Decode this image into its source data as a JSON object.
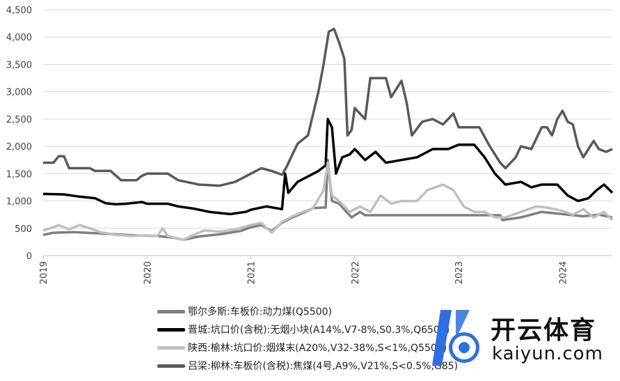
{
  "chart_data": {
    "type": "line",
    "ylim": [
      0,
      4500
    ],
    "yticks": [
      "0",
      "500",
      "1,000",
      "1,500",
      "2,000",
      "2,500",
      "3,000",
      "3,500",
      "4,000",
      "4,500"
    ],
    "ytick_values": [
      0,
      500,
      1000,
      1500,
      2000,
      2500,
      3000,
      3500,
      4000,
      4500
    ],
    "xlim": [
      2019.0,
      2024.48
    ],
    "xticks": [
      "2019",
      "2020",
      "2021",
      "2022",
      "2023",
      "2024"
    ],
    "xtick_values": [
      2019,
      2020,
      2021,
      2022,
      2023,
      2024
    ],
    "grid": "horizontal",
    "legend_position": "bottom",
    "series": [
      {
        "name": "鄂尔多斯:车板价:动力煤(Q5500)",
        "color": "#7f7f7f",
        "points": [
          [
            2019.0,
            380
          ],
          [
            2019.1,
            420
          ],
          [
            2019.3,
            430
          ],
          [
            2019.5,
            410
          ],
          [
            2019.7,
            390
          ],
          [
            2019.9,
            370
          ],
          [
            2020.1,
            360
          ],
          [
            2020.25,
            330
          ],
          [
            2020.35,
            290
          ],
          [
            2020.5,
            350
          ],
          [
            2020.7,
            390
          ],
          [
            2020.9,
            450
          ],
          [
            2021.0,
            520
          ],
          [
            2021.1,
            560
          ],
          [
            2021.2,
            450
          ],
          [
            2021.3,
            600
          ],
          [
            2021.4,
            700
          ],
          [
            2021.5,
            780
          ],
          [
            2021.6,
            870
          ],
          [
            2021.7,
            880
          ],
          [
            2021.72,
            880
          ],
          [
            2021.74,
            1750
          ],
          [
            2021.78,
            1000
          ],
          [
            2021.85,
            950
          ],
          [
            2021.92,
            800
          ],
          [
            2021.97,
            700
          ],
          [
            2022.05,
            800
          ],
          [
            2022.1,
            740
          ],
          [
            2022.3,
            740
          ],
          [
            2022.6,
            740
          ],
          [
            2022.8,
            740
          ],
          [
            2023.0,
            740
          ],
          [
            2023.2,
            740
          ],
          [
            2023.4,
            740
          ],
          [
            2023.42,
            650
          ],
          [
            2023.6,
            700
          ],
          [
            2023.8,
            800
          ],
          [
            2024.0,
            760
          ],
          [
            2024.2,
            720
          ],
          [
            2024.35,
            750
          ],
          [
            2024.48,
            700
          ]
        ]
      },
      {
        "name": "晋城:坑口价(含税):无烟小块(A14%,V7-8%,S0.3%,Q6500)",
        "color": "#000000",
        "points": [
          [
            2019.0,
            1130
          ],
          [
            2019.2,
            1120
          ],
          [
            2019.35,
            1080
          ],
          [
            2019.5,
            1050
          ],
          [
            2019.6,
            960
          ],
          [
            2019.7,
            940
          ],
          [
            2019.8,
            950
          ],
          [
            2019.95,
            980
          ],
          [
            2020.0,
            950
          ],
          [
            2020.2,
            950
          ],
          [
            2020.3,
            900
          ],
          [
            2020.45,
            860
          ],
          [
            2020.6,
            800
          ],
          [
            2020.8,
            760
          ],
          [
            2020.95,
            800
          ],
          [
            2021.0,
            840
          ],
          [
            2021.15,
            900
          ],
          [
            2021.3,
            850
          ],
          [
            2021.33,
            1500
          ],
          [
            2021.36,
            1150
          ],
          [
            2021.45,
            1350
          ],
          [
            2021.55,
            1450
          ],
          [
            2021.65,
            1550
          ],
          [
            2021.72,
            1650
          ],
          [
            2021.74,
            2500
          ],
          [
            2021.78,
            2350
          ],
          [
            2021.82,
            1500
          ],
          [
            2021.88,
            1800
          ],
          [
            2021.95,
            1850
          ],
          [
            2022.0,
            1950
          ],
          [
            2022.1,
            1750
          ],
          [
            2022.2,
            1900
          ],
          [
            2022.3,
            1700
          ],
          [
            2022.45,
            1750
          ],
          [
            2022.6,
            1800
          ],
          [
            2022.75,
            1950
          ],
          [
            2022.9,
            1950
          ],
          [
            2023.0,
            2030
          ],
          [
            2023.15,
            2030
          ],
          [
            2023.25,
            1800
          ],
          [
            2023.35,
            1500
          ],
          [
            2023.45,
            1300
          ],
          [
            2023.6,
            1350
          ],
          [
            2023.7,
            1250
          ],
          [
            2023.8,
            1300
          ],
          [
            2023.95,
            1300
          ],
          [
            2024.05,
            1100
          ],
          [
            2024.15,
            1000
          ],
          [
            2024.25,
            1050
          ],
          [
            2024.33,
            1200
          ],
          [
            2024.4,
            1300
          ],
          [
            2024.48,
            1150
          ]
        ]
      },
      {
        "name": "陕西:榆林:坑口价:烟煤末(A20%,V32-38%,S<1%,Q5500)",
        "color": "#bfbfbf",
        "points": [
          [
            2019.0,
            460
          ],
          [
            2019.1,
            520
          ],
          [
            2019.15,
            560
          ],
          [
            2019.25,
            480
          ],
          [
            2019.35,
            560
          ],
          [
            2019.45,
            500
          ],
          [
            2019.55,
            430
          ],
          [
            2019.7,
            380
          ],
          [
            2019.85,
            360
          ],
          [
            2020.0,
            370
          ],
          [
            2020.1,
            360
          ],
          [
            2020.15,
            500
          ],
          [
            2020.2,
            360
          ],
          [
            2020.35,
            290
          ],
          [
            2020.45,
            380
          ],
          [
            2020.55,
            460
          ],
          [
            2020.7,
            440
          ],
          [
            2020.85,
            480
          ],
          [
            2021.0,
            560
          ],
          [
            2021.1,
            600
          ],
          [
            2021.2,
            420
          ],
          [
            2021.3,
            620
          ],
          [
            2021.4,
            720
          ],
          [
            2021.5,
            800
          ],
          [
            2021.6,
            870
          ],
          [
            2021.7,
            1200
          ],
          [
            2021.74,
            1700
          ],
          [
            2021.78,
            1100
          ],
          [
            2021.85,
            1000
          ],
          [
            2021.95,
            800
          ],
          [
            2022.05,
            900
          ],
          [
            2022.15,
            800
          ],
          [
            2022.25,
            1100
          ],
          [
            2022.35,
            950
          ],
          [
            2022.45,
            1000
          ],
          [
            2022.6,
            1000
          ],
          [
            2022.7,
            1200
          ],
          [
            2022.85,
            1300
          ],
          [
            2022.95,
            1200
          ],
          [
            2023.05,
            900
          ],
          [
            2023.15,
            800
          ],
          [
            2023.25,
            800
          ],
          [
            2023.35,
            700
          ],
          [
            2023.45,
            700
          ],
          [
            2023.6,
            800
          ],
          [
            2023.75,
            900
          ],
          [
            2023.85,
            880
          ],
          [
            2024.0,
            820
          ],
          [
            2024.1,
            750
          ],
          [
            2024.2,
            850
          ],
          [
            2024.3,
            700
          ],
          [
            2024.4,
            800
          ],
          [
            2024.48,
            650
          ]
        ]
      },
      {
        "name": "吕梁:柳林:车板价(含税):焦煤(4号,A9%,V21%,S<0.5%,G85)",
        "color": "#595959",
        "points": [
          [
            2019.0,
            1700
          ],
          [
            2019.1,
            1700
          ],
          [
            2019.15,
            1820
          ],
          [
            2019.2,
            1820
          ],
          [
            2019.25,
            1600
          ],
          [
            2019.45,
            1600
          ],
          [
            2019.5,
            1550
          ],
          [
            2019.65,
            1550
          ],
          [
            2019.75,
            1380
          ],
          [
            2019.9,
            1380
          ],
          [
            2019.95,
            1460
          ],
          [
            2020.0,
            1500
          ],
          [
            2020.2,
            1500
          ],
          [
            2020.3,
            1380
          ],
          [
            2020.5,
            1300
          ],
          [
            2020.7,
            1280
          ],
          [
            2020.85,
            1350
          ],
          [
            2021.0,
            1500
          ],
          [
            2021.1,
            1600
          ],
          [
            2021.2,
            1550
          ],
          [
            2021.3,
            1480
          ],
          [
            2021.35,
            1650
          ],
          [
            2021.4,
            1850
          ],
          [
            2021.45,
            2050
          ],
          [
            2021.55,
            2200
          ],
          [
            2021.6,
            2600
          ],
          [
            2021.65,
            3000
          ],
          [
            2021.7,
            3500
          ],
          [
            2021.75,
            4100
          ],
          [
            2021.8,
            4150
          ],
          [
            2021.85,
            3900
          ],
          [
            2021.9,
            3600
          ],
          [
            2021.93,
            2200
          ],
          [
            2021.97,
            2300
          ],
          [
            2022.0,
            2700
          ],
          [
            2022.1,
            2500
          ],
          [
            2022.15,
            3250
          ],
          [
            2022.3,
            3250
          ],
          [
            2022.35,
            2900
          ],
          [
            2022.45,
            3200
          ],
          [
            2022.5,
            2800
          ],
          [
            2022.55,
            2200
          ],
          [
            2022.65,
            2450
          ],
          [
            2022.75,
            2500
          ],
          [
            2022.85,
            2400
          ],
          [
            2022.95,
            2600
          ],
          [
            2023.0,
            2350
          ],
          [
            2023.1,
            2350
          ],
          [
            2023.2,
            2350
          ],
          [
            2023.3,
            2000
          ],
          [
            2023.4,
            1700
          ],
          [
            2023.45,
            1600
          ],
          [
            2023.55,
            1800
          ],
          [
            2023.6,
            2000
          ],
          [
            2023.7,
            1950
          ],
          [
            2023.8,
            2350
          ],
          [
            2023.85,
            2350
          ],
          [
            2023.9,
            2200
          ],
          [
            2023.95,
            2500
          ],
          [
            2024.0,
            2650
          ],
          [
            2024.05,
            2450
          ],
          [
            2024.1,
            2400
          ],
          [
            2024.15,
            2000
          ],
          [
            2024.2,
            1800
          ],
          [
            2024.3,
            2100
          ],
          [
            2024.35,
            1950
          ],
          [
            2024.42,
            1900
          ],
          [
            2024.48,
            1950
          ]
        ]
      }
    ]
  },
  "logo": {
    "text_cn": "开云体育",
    "text_en": "kaiyun.com"
  }
}
